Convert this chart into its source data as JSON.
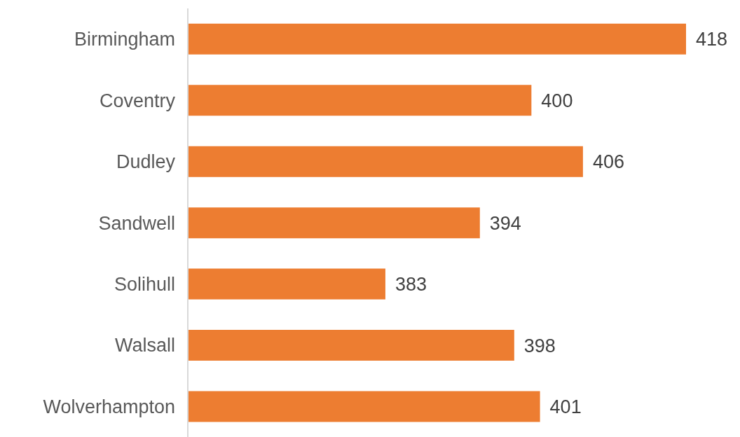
{
  "chart_data": {
    "type": "bar",
    "orientation": "horizontal",
    "categories": [
      "Birmingham",
      "Coventry",
      "Dudley",
      "Sandwell",
      "Solihull",
      "Walsall",
      "Wolverhampton"
    ],
    "values": [
      418,
      400,
      406,
      394,
      383,
      398,
      401
    ],
    "color": "#ed7d31",
    "xlim": [
      360,
      418
    ],
    "data_labels": true,
    "tick_labels": "y"
  }
}
